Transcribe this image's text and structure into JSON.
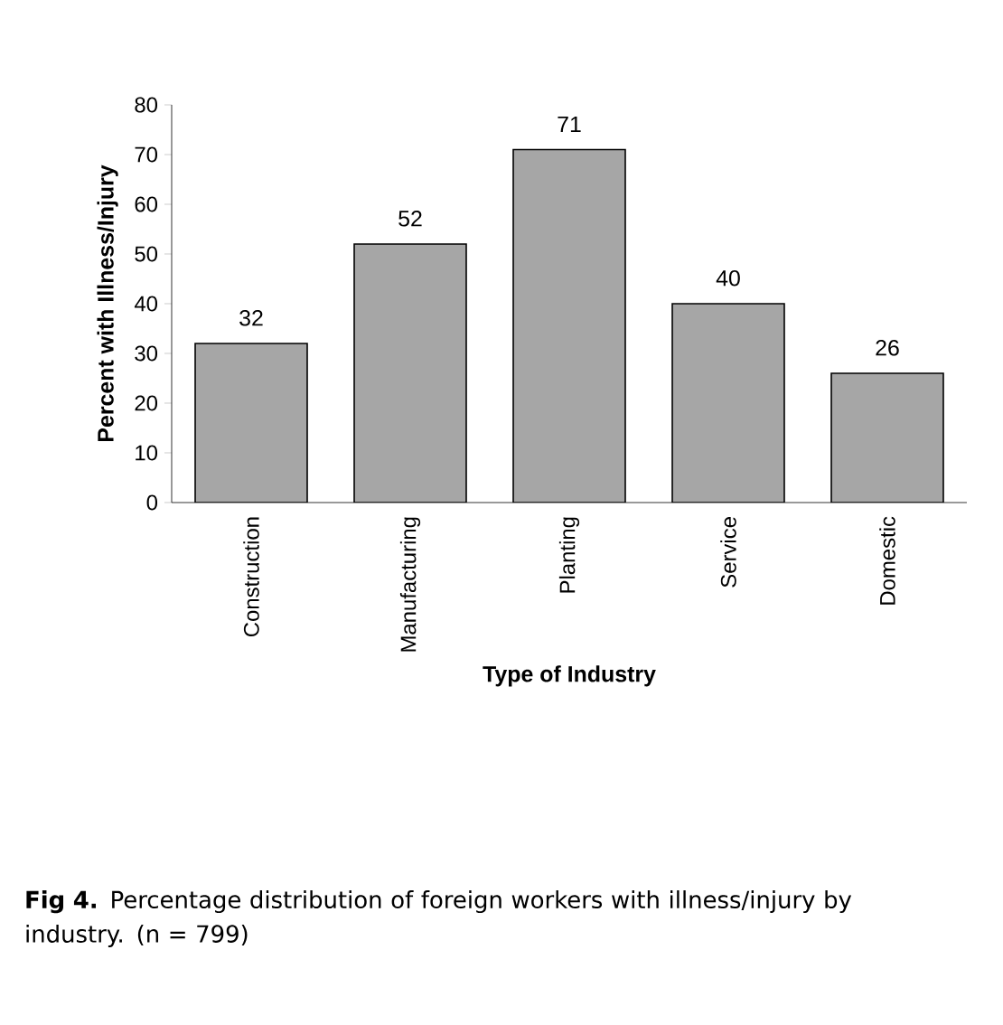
{
  "chart_data": {
    "type": "bar",
    "xlabel": "Type of Industry",
    "ylabel": "Percent with Illness/Injury",
    "categories": [
      "Construction",
      "Manufacturing",
      "Planting",
      "Service",
      "Domestic"
    ],
    "values": [
      32,
      52,
      71,
      40,
      26
    ],
    "color": "#a6a6a6",
    "ylim": [
      0,
      80
    ],
    "yticks": [
      0,
      10,
      20,
      30,
      40,
      50,
      60,
      70,
      80
    ],
    "grid": false,
    "data_labels": true,
    "annotations": [
      "**Fig 4.** Percentage distribution of foreign workers with illness/injury by industry.   (n = 799)"
    ]
  }
}
